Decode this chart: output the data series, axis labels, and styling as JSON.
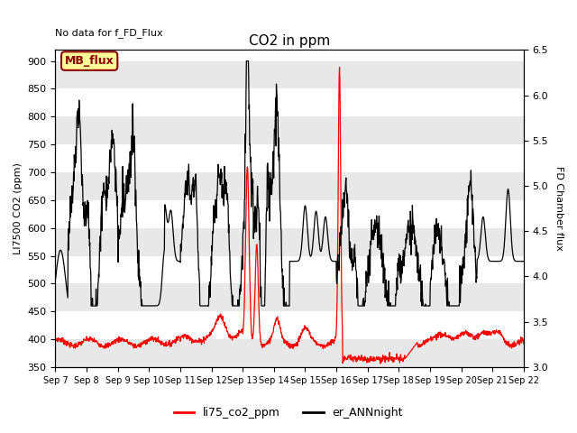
{
  "title": "CO2 in ppm",
  "no_data_text": "No data for f_FD_Flux",
  "mb_flux_label": "MB_flux",
  "ylabel_left": "LI7500 CO2 (ppm)",
  "ylabel_right": "FD Chamber flux",
  "ylim_left": [
    350,
    920
  ],
  "ylim_right": [
    3.0,
    6.5
  ],
  "yticks_left": [
    350,
    400,
    450,
    500,
    550,
    600,
    650,
    700,
    750,
    800,
    850,
    900
  ],
  "yticks_right": [
    3.0,
    3.5,
    4.0,
    4.5,
    5.0,
    5.5,
    6.0,
    6.5
  ],
  "xtick_labels": [
    "Sep 7",
    "Sep 8",
    "Sep 9",
    "Sep 10",
    "Sep 11",
    "Sep 12",
    "Sep 13",
    "Sep 14",
    "Sep 15",
    "Sep 16",
    "Sep 17",
    "Sep 18",
    "Sep 19",
    "Sep 20",
    "Sep 21",
    "Sep 22"
  ],
  "legend_labels": [
    "li75_co2_ppm",
    "er_ANNnight"
  ],
  "legend_colors": [
    "red",
    "black"
  ],
  "line_color_red": "#ff0000",
  "line_color_black": "#000000",
  "background_color": "#ffffff",
  "band_color": "#e8e8e8",
  "mb_flux_bg": "#ffff99",
  "mb_flux_edge": "#8b0000"
}
